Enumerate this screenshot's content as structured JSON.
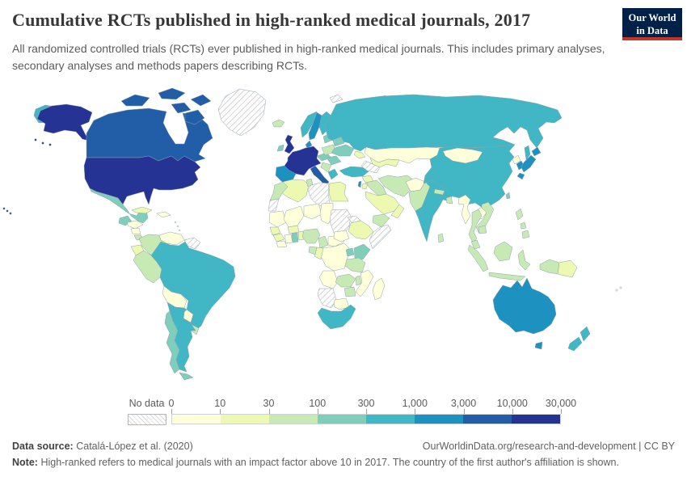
{
  "header": {
    "title": "Cumulative RCTs published in high-ranked medical journals, 2017",
    "subtitle": "All randomized controlled trials (RCTs) ever published in high-ranked medical journals. This includes primary analyses, secondary analyses and methods papers describing RCTs.",
    "logo": {
      "line1": "Our World",
      "line2": "in Data",
      "bg_color": "#002147",
      "accent_color": "#c0362c"
    }
  },
  "legend": {
    "no_data_label": "No data",
    "tick_labels": [
      "0",
      "10",
      "30",
      "100",
      "300",
      "1,000",
      "3,000",
      "10,000",
      "30,000"
    ]
  },
  "chart_data": {
    "type": "choropleth-map",
    "title": "Cumulative RCTs published in high-ranked medical journals",
    "year": "2017",
    "legend_position": "bottom",
    "bins": [
      "0-10",
      "10-30",
      "30-100",
      "100-300",
      "300-1,000",
      "1,000-3,000",
      "3,000-10,000",
      "10,000-30,000"
    ],
    "colors": [
      "#ffffd9",
      "#edf8b1",
      "#c7e9b4",
      "#7fcdbb",
      "#41b6c4",
      "#1d91c0",
      "#225ea8",
      "#253494"
    ],
    "no_data_pattern": "diagonal-hatch",
    "countries": {
      "usa": 7,
      "canada": 6,
      "greenland": "nodata",
      "mexico": 3,
      "guatemala": 3,
      "honduras": 0,
      "nicaragua": 0,
      "costarica": 2,
      "panama": 2,
      "cuba": 1,
      "hispaniola": 0,
      "caribbean": 0,
      "venezuela": 0,
      "colombia": 2,
      "guyanas": "nodata",
      "ecuador": 1,
      "peru": 2,
      "brazil": 4,
      "bolivia": 0,
      "paraguay": 0,
      "uruguay": 2,
      "argentina": 4,
      "chile": 3,
      "iceland": 2,
      "uk": 7,
      "ireland": 3,
      "norway": 4,
      "sweden": 5,
      "finland": 4,
      "denmark": 5,
      "baltics": 3,
      "weurope": 7,
      "spain": 5,
      "italy": 6,
      "austriacz": 3,
      "poland": 2,
      "belarus": 3,
      "ukraine": 3,
      "romania": 3,
      "balkans": 2,
      "greece": 4,
      "russia": 4,
      "svalbard": "nodata",
      "novaya": "nodata",
      "turkey": 4,
      "caucasus": 1,
      "kazakhstan": 0,
      "uzbekistan": 1,
      "turkmenistan": "nodata",
      "syria": 1,
      "iraq": 2,
      "israel": 5,
      "jordan": 1,
      "saudi": 1,
      "yemen": 2,
      "oman": 1,
      "iran": 2,
      "afghanistan": 0,
      "pakistan": 2,
      "india": 4,
      "nepal": 2,
      "bangladesh": 2,
      "srilanka": 2,
      "china": 4,
      "mongolia": 0,
      "nkorea": 0,
      "skorea": 5,
      "japan": 5,
      "taiwan": 3,
      "myanmar": 0,
      "thailand": 2,
      "laos": 0,
      "vietnam": 2,
      "cambodia": 2,
      "malaysia": 2,
      "indonesia": 2,
      "png": 1,
      "philippines": 2,
      "australia": 5,
      "newzealand": 4,
      "fiji": 0,
      "morocco": 2,
      "wsahara": "nodata",
      "algeria": 1,
      "tunisia": 2,
      "libya": "nodata",
      "egypt": 1,
      "mauritania": 0,
      "mali": 0,
      "niger": 0,
      "chad": 0,
      "sudan": "nodata",
      "eritrea": "nodata",
      "ethiopia": 1,
      "somalia": "nodata",
      "senegal": 1,
      "guinea": 1,
      "sierraleone": 0,
      "ivorycoast": 0,
      "ghana": 3,
      "togobenin": 1,
      "burkina": 1,
      "nigeria": 2,
      "cameroon": 2,
      "car": 0,
      "southsudan": 0,
      "drc": 0,
      "congo": 1,
      "gabon": 2,
      "uganda": 3,
      "kenya": 3,
      "tanzania": 2,
      "angola": 0,
      "zambia": 2,
      "malawi": 2,
      "mozambique": 0,
      "zimbabwe": 2,
      "namibia": "nodata",
      "botswana": 0,
      "southafrica": 4,
      "madagascar": 0
    }
  },
  "footer": {
    "source_label": "Data source:",
    "source": "Catalá-López et al. (2020)",
    "link_text": "OurWorldinData.org/research-and-development",
    "license": "CC BY",
    "note_label": "Note:",
    "note": "High-ranked refers to medical journals with an impact factor above 10 in 2017. The country of the first author's affiliation is shown."
  }
}
